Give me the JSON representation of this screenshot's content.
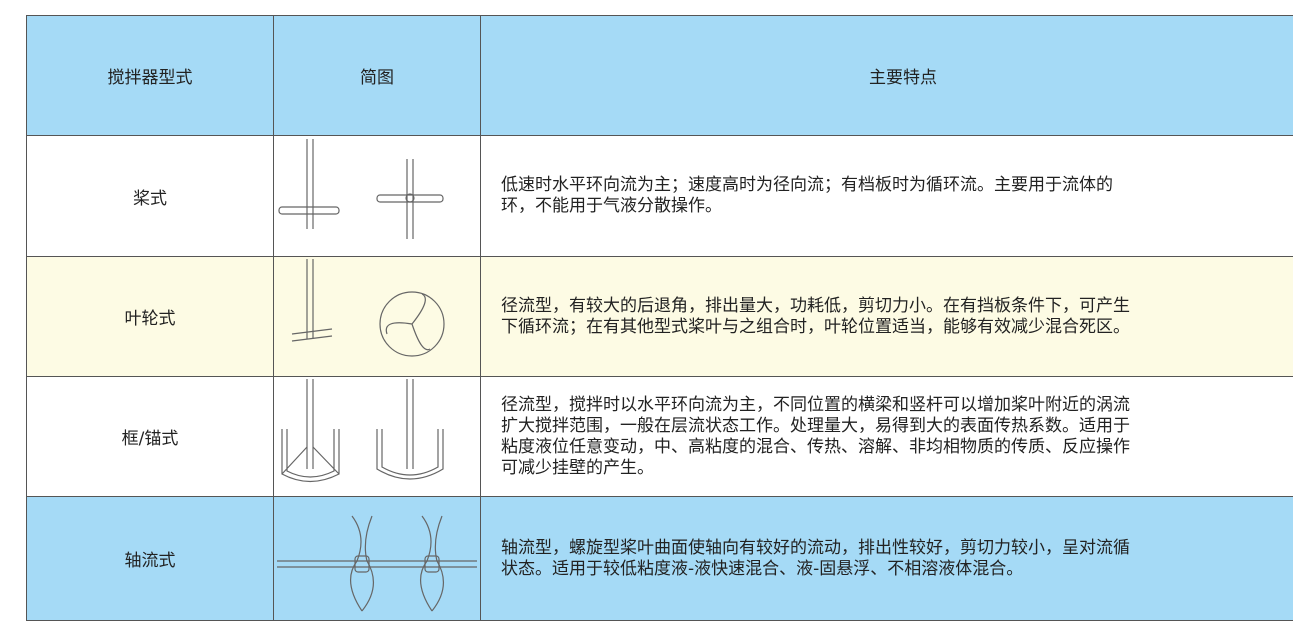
{
  "table": {
    "header": [
      "搅拌器型式",
      "简图",
      "主要特点"
    ],
    "rows": [
      {
        "name": "桨式",
        "lines": [
          "低速时水平环向流为主；速度高时为径向流；有档板时为循环流。主要用于流体的",
          "环，不能用于气液分散操作。"
        ]
      },
      {
        "name": "叶轮式",
        "lines": [
          "径流型，有较大的后退角，排出量大，功耗低，剪切力小。在有挡板条件下，可产生",
          "下循环流；在有其他型式桨叶与之组合时，叶轮位置适当，能够有效减少混合死区。"
        ]
      },
      {
        "name": "框/锚式",
        "lines": [
          "径流型，搅拌时以水平环向流为主，不同位置的横梁和竖杆可以增加桨叶附近的涡流",
          "扩大搅拌范围，一般在层流状态工作。处理量大，易得到大的表面传热系数。适用于",
          "粘度液位任意变动，中、高粘度的混合、传热、溶解、非均相物质的传质、反应操作",
          "可减少挂壁的产生。"
        ]
      },
      {
        "name": "轴流式",
        "lines": [
          "轴流型，螺旋型桨叶曲面使轴向有较好的流动，排出性较好，剪切力较小，呈对流循",
          "状态。适用于较低粘度液-液快速混合、液-固悬浮、不相溶液体混合。"
        ]
      }
    ]
  }
}
